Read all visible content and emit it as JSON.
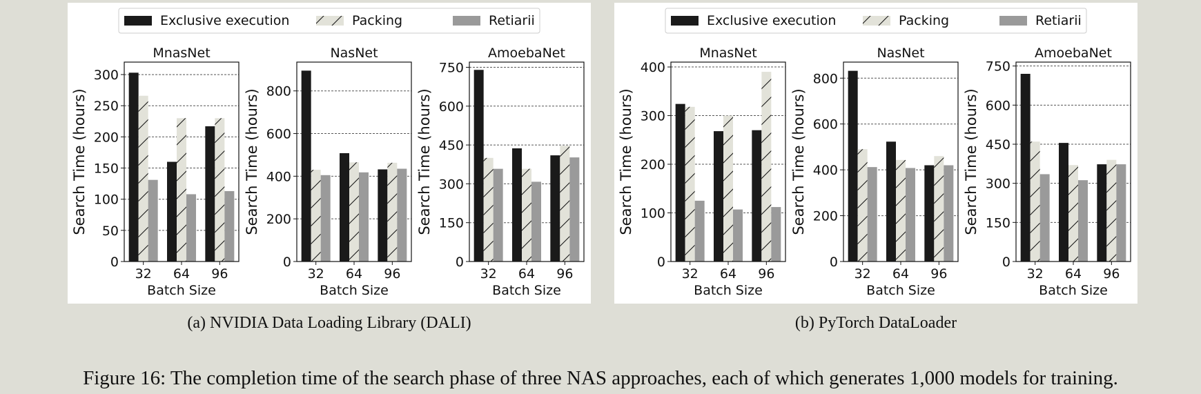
{
  "figure_caption": "Figure 16: The completion time of the search phase of three NAS approaches, each of which generates 1,000 models for training.",
  "colors": {
    "exclusive": "#1a1a1a",
    "packing": "#e2e2d9",
    "retiarii": "#9a9a9a",
    "hatch": "#111111"
  },
  "legend": {
    "placement": "top-center",
    "entries": [
      "Exclusive execution",
      "Packing",
      "Retiarii"
    ]
  },
  "panels": [
    {
      "caption": "(a)  NVIDIA Data Loading Library (DALI)"
    },
    {
      "caption": "(b)  PyTorch DataLoader"
    }
  ],
  "chart_data": [
    {
      "type": "bar",
      "title": "MnasNet",
      "panel": "a",
      "xlabel": "Batch Size",
      "ylabel": "Search Time (hours)",
      "categories": [
        "32",
        "64",
        "96"
      ],
      "ylim": [
        0,
        320
      ],
      "yticks": [
        0,
        50,
        100,
        150,
        200,
        250,
        300
      ],
      "series": [
        {
          "name": "Exclusive execution",
          "values": [
            303,
            160,
            217
          ]
        },
        {
          "name": "Packing",
          "values": [
            266,
            230,
            230
          ]
        },
        {
          "name": "Retiarii",
          "values": [
            131,
            108,
            113
          ]
        }
      ]
    },
    {
      "type": "bar",
      "title": "NasNet",
      "panel": "a",
      "xlabel": "Batch Size",
      "ylabel": "Search Time (hours)",
      "categories": [
        "32",
        "64",
        "96"
      ],
      "ylim": [
        0,
        935
      ],
      "yticks": [
        0,
        200,
        400,
        600,
        800
      ],
      "series": [
        {
          "name": "Exclusive execution",
          "values": [
            895,
            508,
            432
          ]
        },
        {
          "name": "Packing",
          "values": [
            430,
            465,
            463
          ]
        },
        {
          "name": "Retiarii",
          "values": [
            405,
            418,
            435
          ]
        }
      ]
    },
    {
      "type": "bar",
      "title": "AmoebaNet",
      "panel": "a",
      "xlabel": "Batch Size",
      "ylabel": "Search Time (hours)",
      "categories": [
        "32",
        "64",
        "96"
      ],
      "ylim": [
        0,
        770
      ],
      "yticks": [
        0,
        150,
        300,
        450,
        600,
        750
      ],
      "series": [
        {
          "name": "Exclusive execution",
          "values": [
            740,
            437,
            410
          ]
        },
        {
          "name": "Packing",
          "values": [
            400,
            358,
            447
          ]
        },
        {
          "name": "Retiarii",
          "values": [
            358,
            308,
            402
          ]
        }
      ]
    },
    {
      "type": "bar",
      "title": "MnasNet",
      "panel": "b",
      "xlabel": "Batch Size",
      "ylabel": "Search Time (hours)",
      "categories": [
        "32",
        "64",
        "96"
      ],
      "ylim": [
        0,
        410
      ],
      "yticks": [
        0,
        100,
        200,
        300,
        400
      ],
      "series": [
        {
          "name": "Exclusive execution",
          "values": [
            324,
            268,
            270
          ]
        },
        {
          "name": "Packing",
          "values": [
            318,
            300,
            390
          ]
        },
        {
          "name": "Retiarii",
          "values": [
            125,
            107,
            112
          ]
        }
      ]
    },
    {
      "type": "bar",
      "title": "NasNet",
      "panel": "b",
      "xlabel": "Batch Size",
      "ylabel": "Search Time (hours)",
      "categories": [
        "32",
        "64",
        "96"
      ],
      "ylim": [
        0,
        870
      ],
      "yticks": [
        0,
        200,
        400,
        600,
        800
      ],
      "series": [
        {
          "name": "Exclusive execution",
          "values": [
            832,
            523,
            420
          ]
        },
        {
          "name": "Packing",
          "values": [
            490,
            443,
            460
          ]
        },
        {
          "name": "Retiarii",
          "values": [
            412,
            408,
            420
          ]
        }
      ]
    },
    {
      "type": "bar",
      "title": "AmoebaNet",
      "panel": "b",
      "xlabel": "Batch Size",
      "ylabel": "Search Time (hours)",
      "categories": [
        "32",
        "64",
        "96"
      ],
      "ylim": [
        0,
        765
      ],
      "yticks": [
        0,
        150,
        300,
        450,
        600,
        750
      ],
      "series": [
        {
          "name": "Exclusive execution",
          "values": [
            720,
            455,
            373
          ]
        },
        {
          "name": "Packing",
          "values": [
            460,
            370,
            390
          ]
        },
        {
          "name": "Retiarii",
          "values": [
            335,
            312,
            373
          ]
        }
      ]
    }
  ]
}
